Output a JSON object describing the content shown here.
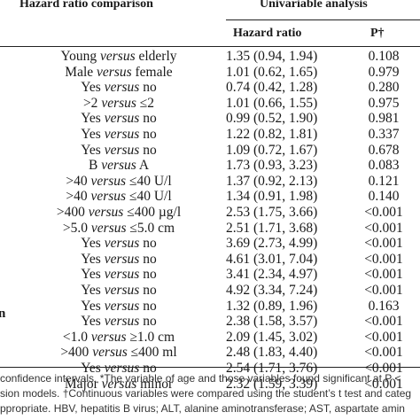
{
  "header": {
    "comparison": "Hazard ratio comparison",
    "analysis": "Univariable analysis",
    "hazard_ratio": "Hazard ratio",
    "p": "P†"
  },
  "left_stub": "n",
  "rows": [
    {
      "a": "Young",
      "sep": "versus",
      "b": "elderly",
      "hr": "1.35 (0.94, 1.94)",
      "p": "0.108"
    },
    {
      "a": "Male",
      "sep": "versus",
      "b": "female",
      "hr": "1.01 (0.62, 1.65)",
      "p": "0.979"
    },
    {
      "a": "Yes",
      "sep": "versus",
      "b": "no",
      "hr": "0.74 (0.42, 1.28)",
      "p": "0.280"
    },
    {
      "a": ">2",
      "sep": "versus",
      "b": "≤2",
      "hr": "1.01 (0.66, 1.55)",
      "p": "0.975"
    },
    {
      "a": "Yes",
      "sep": "versus",
      "b": "no",
      "hr": "0.99 (0.52, 1.90)",
      "p": "0.981"
    },
    {
      "a": "Yes",
      "sep": "versus",
      "b": "no",
      "hr": "1.22 (0.82, 1.81)",
      "p": "0.337"
    },
    {
      "a": "Yes",
      "sep": "versus",
      "b": "no",
      "hr": "1.09 (0.72, 1.67)",
      "p": "0.678"
    },
    {
      "a": "B",
      "sep": "versus",
      "b": "A",
      "hr": "1.73 (0.93, 3.23)",
      "p": "0.083"
    },
    {
      "a": ">40",
      "sep": "versus",
      "b": "≤40 U/l",
      "hr": "1.37 (0.92, 2.13)",
      "p": "0.121"
    },
    {
      "a": ">40",
      "sep": "versus",
      "b": "≤40 U/l",
      "hr": "1.34 (0.91, 1.98)",
      "p": "0.140"
    },
    {
      "a": ">400",
      "sep": "versus",
      "b": "≤400 µg/l",
      "hr": "2.53 (1.75, 3.66)",
      "p": "<0.001"
    },
    {
      "a": ">5.0",
      "sep": "versus",
      "b": "≤5.0 cm",
      "hr": "2.51 (1.71, 3.68)",
      "p": "<0.001"
    },
    {
      "a": "Yes",
      "sep": "versus",
      "b": "no",
      "hr": "3.69 (2.73, 4.99)",
      "p": "<0.001"
    },
    {
      "a": "Yes",
      "sep": "versus",
      "b": "no",
      "hr": "4.61 (3.01, 7.04)",
      "p": "<0.001"
    },
    {
      "a": "Yes",
      "sep": "versus",
      "b": "no",
      "hr": "3.41 (2.34, 4.97)",
      "p": "<0.001"
    },
    {
      "a": "Yes",
      "sep": "versus",
      "b": "no",
      "hr": "4.92 (3.34, 7.24)",
      "p": "<0.001"
    },
    {
      "a": "Yes",
      "sep": "versus",
      "b": "no",
      "hr": "1.32 (0.89, 1.96)",
      "p": "0.163"
    },
    {
      "a": "Yes",
      "sep": "versus",
      "b": "no",
      "hr": "2.38 (1.58, 3.57)",
      "p": "<0.001"
    },
    {
      "a": "<1.0",
      "sep": "versus",
      "b": "≥1.0 cm",
      "hr": "2.09 (1.45, 3.02)",
      "p": "<0.001"
    },
    {
      "a": ">400",
      "sep": "versus",
      "b": "≤400 ml",
      "hr": "2.48 (1.83, 4.40)",
      "p": "<0.001"
    },
    {
      "a": "Yes",
      "sep": "versus",
      "b": "no",
      "hr": "2.54 (1.71, 3.76)",
      "p": "<0.001"
    },
    {
      "a": "Major",
      "sep": "versus",
      "b": "minor",
      "hr": "2.32 (1.59, 3.39)",
      "p": "<0.001"
    }
  ],
  "footer": {
    "line1": "confidence intervals. *The variable of age and those variables found significant at P <",
    "line2": "sion models. †Continuous variables were compared using the student’s t test and categ",
    "line3": "ppropriate. HBV, hepatitis B virus; ALT, alanine aminotransferase; AST, aspartate amin"
  }
}
